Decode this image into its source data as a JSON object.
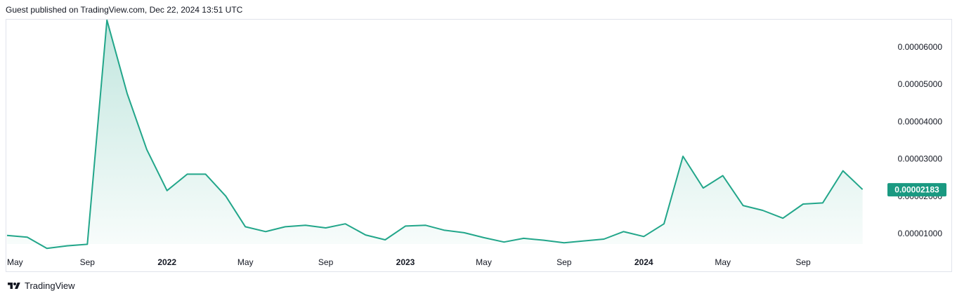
{
  "header": {
    "published": "Guest published on TradingView.com, Dec 22, 2024 13:51 UTC"
  },
  "footer": {
    "brand": "TradingView"
  },
  "colors": {
    "line": "#22a68a",
    "fill_top": "#22a68a",
    "price_label_bg": "#1a9981",
    "axis_text": "#131722",
    "border": "#e0e3eb"
  },
  "chart_data": {
    "type": "area",
    "y_ticks": [
      "0.00006000",
      "0.00005000",
      "0.00004000",
      "0.00003000",
      "0.00002000",
      "0.00001000"
    ],
    "y_tick_values": [
      6e-05,
      5e-05,
      4e-05,
      3e-05,
      2e-05,
      1e-05
    ],
    "x_ticks": [
      {
        "label": "May",
        "date": "2021-05-01",
        "bold": false
      },
      {
        "label": "Sep",
        "date": "2021-09-01",
        "bold": false
      },
      {
        "label": "2022",
        "date": "2022-01-01",
        "bold": true
      },
      {
        "label": "May",
        "date": "2022-05-01",
        "bold": false
      },
      {
        "label": "Sep",
        "date": "2022-09-01",
        "bold": false
      },
      {
        "label": "2023",
        "date": "2023-01-01",
        "bold": true
      },
      {
        "label": "May",
        "date": "2023-05-01",
        "bold": false
      },
      {
        "label": "Sep",
        "date": "2023-09-01",
        "bold": false
      },
      {
        "label": "2024",
        "date": "2024-01-01",
        "bold": true
      },
      {
        "label": "May",
        "date": "2024-05-01",
        "bold": false
      },
      {
        "label": "Sep",
        "date": "2024-09-01",
        "bold": false
      }
    ],
    "last_price_label": "0.00002183",
    "last_price": 2.183e-05,
    "ylim": [
      3.5e-06,
      6.72e-05
    ],
    "series": [
      {
        "points": [
          [
            "2021-05-01",
            9.5e-06
          ],
          [
            "2021-06-01",
            9e-06
          ],
          [
            "2021-07-01",
            6e-06
          ],
          [
            "2021-08-01",
            6.7e-06
          ],
          [
            "2021-09-01",
            7.1e-06
          ],
          [
            "2021-10-01",
            6.72e-05
          ],
          [
            "2021-11-01",
            4.75e-05
          ],
          [
            "2021-12-01",
            3.25e-05
          ],
          [
            "2022-01-01",
            2.15e-05
          ],
          [
            "2022-02-01",
            2.59e-05
          ],
          [
            "2022-03-01",
            2.59e-05
          ],
          [
            "2022-04-01",
            2e-05
          ],
          [
            "2022-05-01",
            1.18e-05
          ],
          [
            "2022-06-01",
            1.05e-05
          ],
          [
            "2022-07-01",
            1.18e-05
          ],
          [
            "2022-08-01",
            1.22e-05
          ],
          [
            "2022-09-01",
            1.15e-05
          ],
          [
            "2022-10-01",
            1.26e-05
          ],
          [
            "2022-11-01",
            9.6e-06
          ],
          [
            "2022-12-01",
            8.3e-06
          ],
          [
            "2023-01-01",
            1.2e-05
          ],
          [
            "2023-02-01",
            1.22e-05
          ],
          [
            "2023-03-01",
            1.09e-05
          ],
          [
            "2023-04-01",
            1.02e-05
          ],
          [
            "2023-05-01",
            8.9e-06
          ],
          [
            "2023-06-01",
            7.7e-06
          ],
          [
            "2023-07-01",
            8.7e-06
          ],
          [
            "2023-08-01",
            8.2e-06
          ],
          [
            "2023-09-01",
            7.5e-06
          ],
          [
            "2023-10-01",
            8e-06
          ],
          [
            "2023-11-01",
            8.5e-06
          ],
          [
            "2023-12-01",
            1.05e-05
          ],
          [
            "2024-01-01",
            9.2e-06
          ],
          [
            "2024-02-01",
            1.26e-05
          ],
          [
            "2024-03-01",
            3.07e-05
          ],
          [
            "2024-04-01",
            2.22e-05
          ],
          [
            "2024-05-01",
            2.55e-05
          ],
          [
            "2024-06-01",
            1.75e-05
          ],
          [
            "2024-07-01",
            1.62e-05
          ],
          [
            "2024-08-01",
            1.41e-05
          ],
          [
            "2024-09-01",
            1.79e-05
          ],
          [
            "2024-10-01",
            1.82e-05
          ],
          [
            "2024-11-01",
            2.68e-05
          ],
          [
            "2024-12-01",
            2.18e-05
          ]
        ]
      }
    ],
    "grid": false
  }
}
